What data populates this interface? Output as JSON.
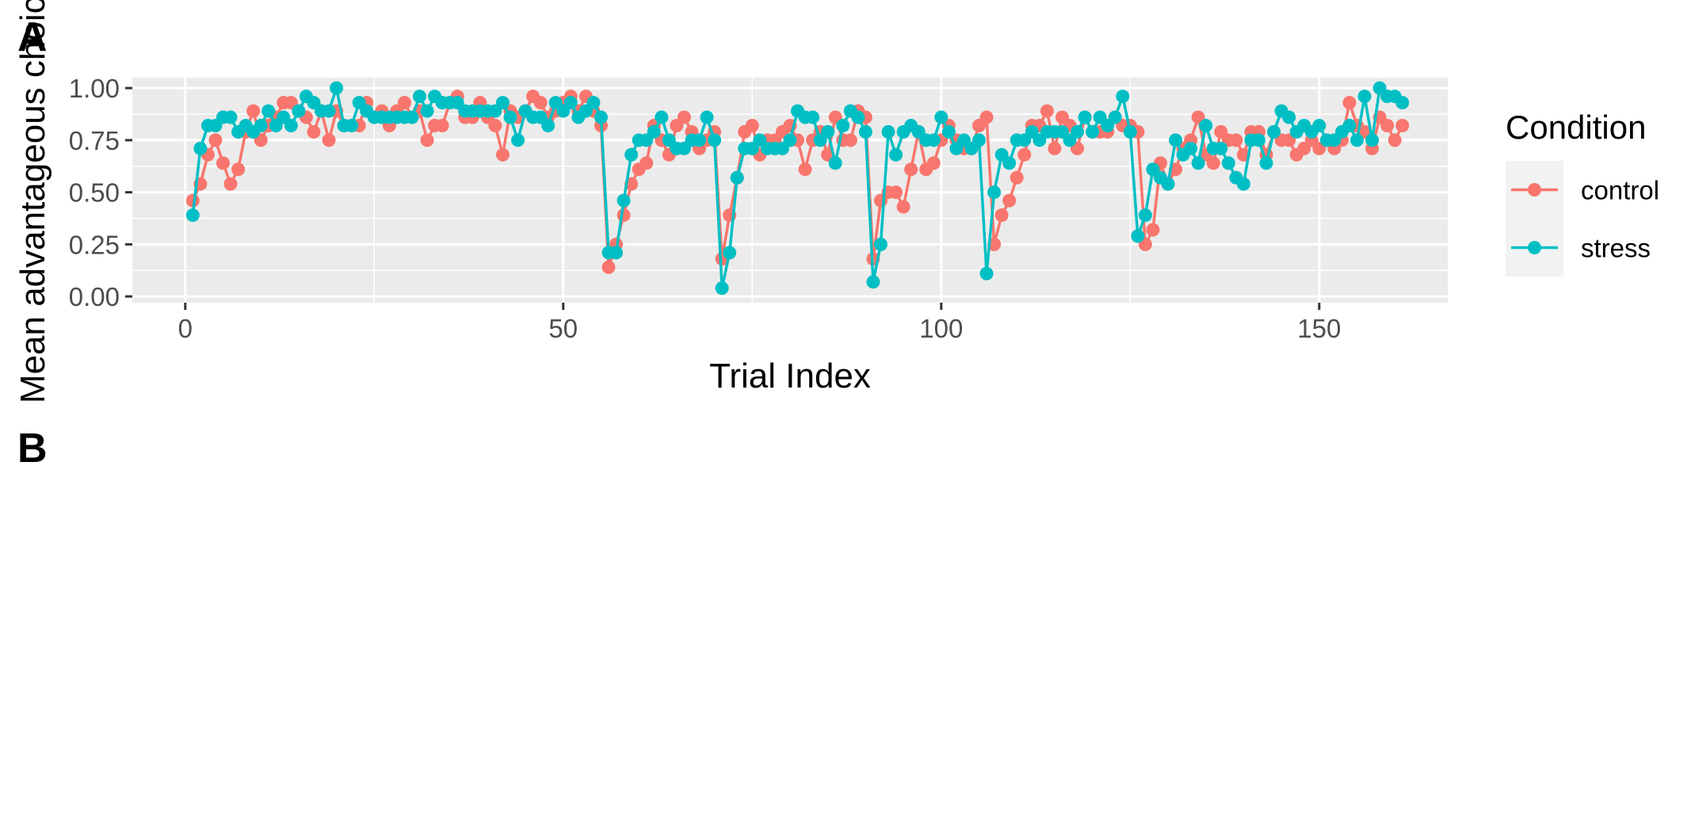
{
  "panels": {
    "a_label": "A",
    "b_label": "B"
  },
  "chart_data": {
    "type": "line",
    "title": "",
    "xlabel": "Trial Index",
    "ylabel": "Mean advantageous choice",
    "xlim": [
      -7,
      167
    ],
    "ylim": [
      -0.03,
      1.05
    ],
    "x_ticks": [
      0,
      50,
      100,
      150
    ],
    "x_tick_labels": [
      "0",
      "50",
      "100",
      "150"
    ],
    "y_ticks": [
      0,
      0.25,
      0.5,
      0.75,
      1
    ],
    "y_tick_labels": [
      "0.00",
      "0.25",
      "0.50",
      "0.75",
      "1.00"
    ],
    "grid": true,
    "background": "#ebebeb",
    "legend": {
      "title": "Condition",
      "position": "right"
    },
    "series": [
      {
        "name": "control",
        "color": "#f8766d",
        "values": [
          0.46,
          0.54,
          0.68,
          0.75,
          0.64,
          0.54,
          0.61,
          0.79,
          0.89,
          0.75,
          0.82,
          0.86,
          0.93,
          0.93,
          0.89,
          0.86,
          0.79,
          0.89,
          0.75,
          0.89,
          0.82,
          0.82,
          0.82,
          0.93,
          0.86,
          0.89,
          0.82,
          0.89,
          0.93,
          0.86,
          0.89,
          0.75,
          0.82,
          0.82,
          0.93,
          0.96,
          0.86,
          0.86,
          0.93,
          0.86,
          0.82,
          0.68,
          0.89,
          0.86,
          0.89,
          0.96,
          0.93,
          0.86,
          0.89,
          0.93,
          0.96,
          0.89,
          0.96,
          0.89,
          0.82,
          0.14,
          0.25,
          0.39,
          0.54,
          0.61,
          0.64,
          0.82,
          0.75,
          0.68,
          0.82,
          0.86,
          0.79,
          0.71,
          0.75,
          0.79,
          0.18,
          0.39,
          0.57,
          0.79,
          0.82,
          0.68,
          0.75,
          0.75,
          0.79,
          0.82,
          0.75,
          0.61,
          0.75,
          0.79,
          0.68,
          0.86,
          0.75,
          0.75,
          0.89,
          0.86,
          0.18,
          0.46,
          0.5,
          0.5,
          0.43,
          0.61,
          0.79,
          0.61,
          0.64,
          0.75,
          0.82,
          0.75,
          0.71,
          0.71,
          0.82,
          0.86,
          0.25,
          0.39,
          0.46,
          0.57,
          0.68,
          0.82,
          0.82,
          0.89,
          0.71,
          0.86,
          0.82,
          0.71,
          0.86,
          0.79,
          0.79,
          0.79,
          0.86,
          0.82,
          0.82,
          0.79,
          0.25,
          0.32,
          0.64,
          0.54,
          0.61,
          0.71,
          0.75,
          0.86,
          0.68,
          0.64,
          0.79,
          0.75,
          0.75,
          0.68,
          0.79,
          0.79,
          0.68,
          0.79,
          0.75,
          0.75,
          0.68,
          0.71,
          0.75,
          0.71,
          0.75,
          0.71,
          0.75,
          0.93,
          0.82,
          0.79,
          0.71,
          0.86,
          0.82,
          0.75,
          0.82
        ]
      },
      {
        "name": "stress",
        "color": "#00bfc4",
        "values": [
          0.39,
          0.71,
          0.82,
          0.82,
          0.86,
          0.86,
          0.79,
          0.82,
          0.79,
          0.82,
          0.89,
          0.82,
          0.86,
          0.82,
          0.89,
          0.96,
          0.93,
          0.89,
          0.89,
          1.0,
          0.82,
          0.82,
          0.93,
          0.89,
          0.86,
          0.86,
          0.86,
          0.86,
          0.86,
          0.86,
          0.96,
          0.89,
          0.96,
          0.93,
          0.93,
          0.93,
          0.89,
          0.89,
          0.89,
          0.89,
          0.89,
          0.93,
          0.86,
          0.75,
          0.89,
          0.86,
          0.86,
          0.82,
          0.93,
          0.89,
          0.93,
          0.86,
          0.89,
          0.93,
          0.86,
          0.21,
          0.21,
          0.46,
          0.68,
          0.75,
          0.75,
          0.79,
          0.86,
          0.75,
          0.71,
          0.71,
          0.75,
          0.75,
          0.86,
          0.75,
          0.04,
          0.21,
          0.57,
          0.71,
          0.71,
          0.75,
          0.71,
          0.71,
          0.71,
          0.75,
          0.89,
          0.86,
          0.86,
          0.75,
          0.79,
          0.64,
          0.82,
          0.89,
          0.86,
          0.79,
          0.07,
          0.25,
          0.79,
          0.68,
          0.79,
          0.82,
          0.79,
          0.75,
          0.75,
          0.86,
          0.79,
          0.71,
          0.75,
          0.71,
          0.75,
          0.11,
          0.5,
          0.68,
          0.64,
          0.75,
          0.75,
          0.79,
          0.75,
          0.79,
          0.79,
          0.79,
          0.75,
          0.79,
          0.86,
          0.79,
          0.86,
          0.82,
          0.86,
          0.96,
          0.79,
          0.29,
          0.39,
          0.61,
          0.57,
          0.54,
          0.75,
          0.68,
          0.71,
          0.64,
          0.82,
          0.71,
          0.71,
          0.64,
          0.57,
          0.54,
          0.75,
          0.75,
          0.64,
          0.79,
          0.89,
          0.86,
          0.79,
          0.82,
          0.79,
          0.82,
          0.75,
          0.75,
          0.79,
          0.82,
          0.75,
          0.96,
          0.75,
          1.0,
          0.96,
          0.96,
          0.93
        ]
      }
    ]
  }
}
